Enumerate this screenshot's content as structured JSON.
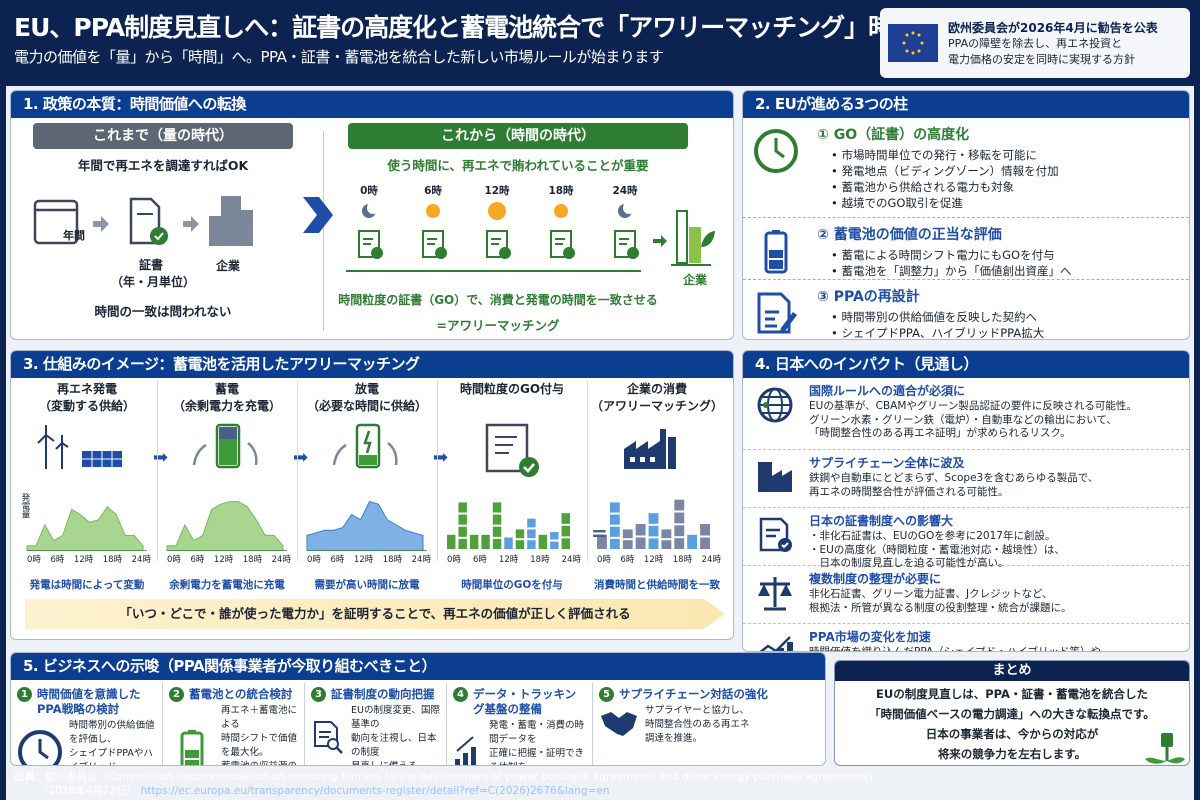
{
  "header": {
    "title": "EU、PPA制度見直しへ：証書の高度化と蓄電池統合で「アワリーマッチング」時代へ",
    "subtitle": "電力の価値を「量」から「時間」へ。PPA・証書・蓄電池を統合した新しい市場ルールが始まります",
    "eu_box": {
      "headline": "欧州委員会が2026年4月に勧告を公表",
      "line1": "PPAの障壁を除去し、再エネ投資と",
      "line2": "電力価格の安定を同時に実現する方針"
    }
  },
  "colors": {
    "navy": "#0c2352",
    "section_header": "#0b3d91",
    "green": "#2e7d32",
    "blue": "#1f4ea8"
  },
  "s1": {
    "title": "1. 政策の本質：時間価値への転換",
    "before": {
      "label": "これまで（量の時代）",
      "lead": "年間で再エネを調達すればOK",
      "calendar": "年間",
      "cert": "証書",
      "cert_sub": "（年・月単位）",
      "company": "企業",
      "note": "時間の一致は問われない"
    },
    "after": {
      "label": "これから（時間の時代）",
      "lead": "使う時間に、再エネで賄われていることが重要",
      "hours": [
        "0時",
        "6時",
        "12時",
        "18時",
        "24時"
      ],
      "company": "企業",
      "note1": "時間粒度の証書（GO）で、消費と発電の時間を一致させる",
      "note2": "=アワリーマッチング"
    }
  },
  "s2": {
    "title": "2. EUが進める3つの柱",
    "items": [
      {
        "title": "① GO（証書）の高度化",
        "icon": "clock-icon",
        "bullets": [
          "市場時間単位での発行・移転を可能に",
          "発電地点（ビディングゾーン）情報を付加",
          "蓄電池から供給される電力も対象",
          "越境でのGO取引を促進"
        ]
      },
      {
        "title": "② 蓄電池の価値の正当な評価",
        "icon": "battery-icon",
        "bullets": [
          "蓄電による時間シフト電力にもGOを付与",
          "蓄電池を「調整力」から「価値創出資産」へ"
        ]
      },
      {
        "title": "③ PPAの再設計",
        "icon": "document-pen-icon",
        "bullets": [
          "時間帯別の供給価値を反映した契約へ",
          "シェイプドPPA、ハイブリッドPPA拡大"
        ]
      }
    ]
  },
  "s3": {
    "title": "3. 仕組みのイメージ：蓄電池を活用したアワリーマッチング",
    "y_label": "発電量",
    "ticks": [
      "0時",
      "6時",
      "12時",
      "18時",
      "24時"
    ],
    "cols": [
      {
        "title": "再エネ発電\n（変動する供給）",
        "caption": "発電は時間によって変動",
        "profile": [
          0.1,
          0.1,
          0.5,
          0.2,
          0.3,
          0.8,
          0.7,
          0.55,
          0.6,
          0.85,
          0.7,
          0.3,
          0.3,
          0.1
        ]
      },
      {
        "title": "蓄電\n（余剰電力を充電）",
        "caption": "余剰電力を蓄電池に充電",
        "profile": [
          0.1,
          0.1,
          0.5,
          0.2,
          0.3,
          0.8,
          0.9,
          0.95,
          0.95,
          0.85,
          0.6,
          0.3,
          0.3,
          0.1
        ]
      },
      {
        "title": "放電\n（必要な時間に供給）",
        "caption": "需要が高い時間に放電",
        "profile": [
          0.3,
          0.35,
          0.4,
          0.4,
          0.45,
          0.7,
          0.6,
          0.95,
          0.9,
          0.6,
          0.5,
          0.4,
          0.35,
          0.3
        ]
      },
      {
        "title": "時間粒度のGO付与",
        "caption": "時間単位のGOを付与",
        "bars": [
          0.3,
          0.9,
          0.3,
          0.3,
          0.9,
          0.25,
          0.4,
          0.6,
          0.3,
          0.35,
          0.7
        ]
      },
      {
        "title": "企業の消費\n（アワリーマッチング）",
        "caption": "消費時間と供給時間を一致",
        "bars": [
          0.3,
          0.9,
          0.4,
          0.5,
          0.7,
          0.4,
          0.95,
          0.3,
          0.5
        ]
      }
    ],
    "equals": "=",
    "banner": "「いつ・どこで・誰が使った電力か」を証明することで、再エネの価値が正しく評価される"
  },
  "s4": {
    "title": "4. 日本へのインパクト（見通し）",
    "items": [
      {
        "title": "国際ルールへの適合が必須に",
        "icon": "globe-icon",
        "text": "EUの基準が、CBAMやグリーン製品認証の要件に反映される可能性。\nグリーン水素・グリーン鉄（電炉）・自動車などの輸出において、\n「時間整合性のある再エネ証明」が求められるリスク。"
      },
      {
        "title": "サプライチェーン全体に波及",
        "icon": "factory-icon",
        "text": "鉄鋼や自動車にとどまらず、Scope3を含むあらゆる製品で、\n再エネの時間整合性が評価される可能性。"
      },
      {
        "title": "日本の証書制度への影響大",
        "icon": "certificate-icon",
        "text": "・非化石証書は、EUのGOを参考に2017年に創設。\n・EUの高度化（時間粒度・蓄電池対応・越境性）は、\n　日本の制度見直しを迫る可能性が高い。"
      },
      {
        "title": "複数制度の整理が必要に",
        "icon": "scale-icon",
        "text": "非化石証書、グリーン電力証書、Jクレジットなど、\n根拠法・所管が異なる制度の役割整理・統合が課題に。"
      },
      {
        "title": "PPA市場の変化を加速",
        "icon": "growth-chart-icon",
        "text": "時間価値を織り込んだPPA（シェイプド・ハイブリッド等）や、\n蓄電池を組み込んだ契約が主流となる見通し。"
      }
    ]
  },
  "s5": {
    "title": "5. ビジネスへの示唆（PPA関係事業者が今取り組むべきこと）",
    "items": [
      {
        "num": "1",
        "title": "時間価値を意識した\nPPA戦略の検討",
        "icon": "clock-icon",
        "text": "時間帯別の供給価値を評価し、\nシェイプドPPAやハイブリッド\nPPAの活用を検討。"
      },
      {
        "num": "2",
        "title": "蓄電池との統合検討",
        "icon": "battery-icon",
        "text": "再エネ＋蓄電池による\n時間シフトで価値を最大化。\n蓄電池の収益源の多様化を\n見据える。"
      },
      {
        "num": "3",
        "title": "証書制度の動向把握",
        "icon": "document-search-icon",
        "text": "EUの制度変更、国際基準の\n動向を注視し、日本の制度\n見直しに備える。"
      },
      {
        "num": "4",
        "title": "データ・トラッキング基盤の整備",
        "icon": "bar-chart-icon",
        "text": "発電・蓄電・消費の時間データを\n正確に把握・証明できる体制を\n構築。"
      },
      {
        "num": "5",
        "title": "サプライチェーン対話の強化",
        "icon": "handshake-icon",
        "text": "サプライヤーと協力し、\n時間整合性のある再エネ\n調達を推進。"
      }
    ]
  },
  "summary": {
    "title": "まとめ",
    "line1": "EUの制度見直しは、PPA・証書・蓄電池を統合した",
    "line2": "「時間価値ベースの電力調達」への大きな転換点です。",
    "line3": "日本の事業者は、今からの対応が",
    "line4": "将来の競争力を左右します。"
  },
  "source": {
    "label": "出典：",
    "text": "欧州委員会「Commission Recommendation on removing barriers to the development of power purchase agreements and other energy purchase agreements」",
    "date": "（2026年4月22日）",
    "url": "https://ec.europa.eu/transparency/documents-register/detail?ref=C(2026)2676&lang=en"
  }
}
